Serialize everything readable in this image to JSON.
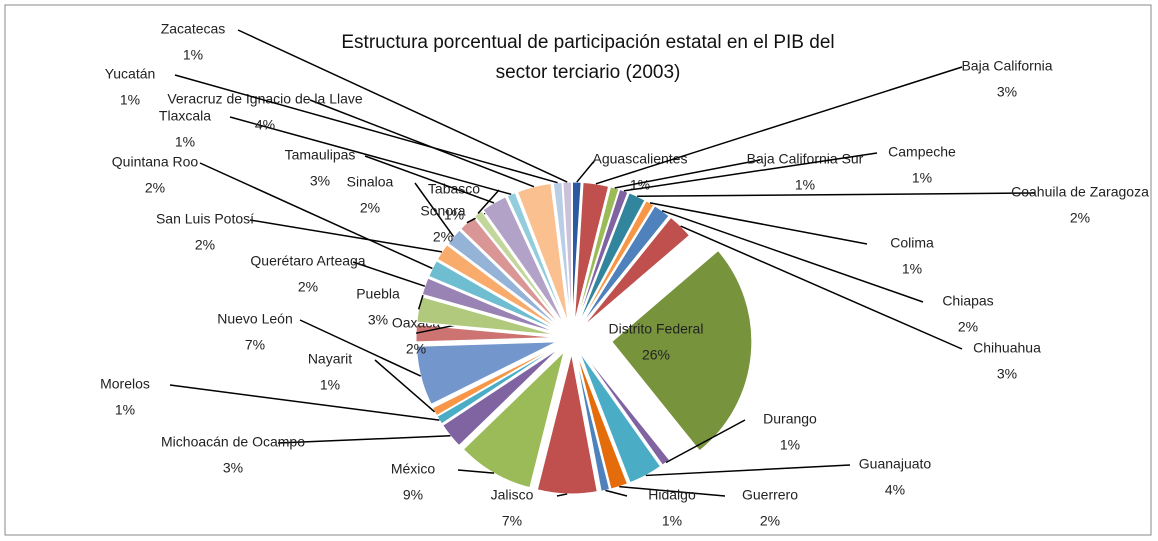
{
  "chart_data": {
    "type": "pie",
    "title": "Estructura porcentual de participación estatal en el PIB del sector terciario (2003)",
    "categories": [
      "Aguascalientes",
      "Baja California",
      "Baja California Sur",
      "Campeche",
      "Coahuila de Zaragoza",
      "Colima",
      "Chiapas",
      "Chihuahua",
      "Distrito Federal",
      "Durango",
      "Guanajuato",
      "Guerrero",
      "Hidalgo",
      "Jalisco",
      "México",
      "Michoacán de Ocampo",
      "Morelos",
      "Nayarit",
      "Nuevo León",
      "Oaxaca",
      "Puebla",
      "Querétaro Arteaga",
      "Quintana Roo",
      "San Luis Potosí",
      "Sinaloa",
      "Sonora",
      "Tabasco",
      "Tamaulipas",
      "Tlaxcala",
      "Veracruz de Ignacio de la Llave",
      "Yucatán",
      "Zacatecas"
    ],
    "values": [
      1,
      3,
      1,
      1,
      2,
      1,
      2,
      3,
      26,
      1,
      4,
      2,
      1,
      7,
      9,
      3,
      1,
      1,
      7,
      2,
      3,
      2,
      2,
      2,
      2,
      2,
      1,
      3,
      1,
      4,
      1,
      1
    ],
    "value_labels": [
      "1%",
      "3%",
      "1%",
      "1%",
      "2%",
      "1%",
      "2%",
      "3%",
      "26%",
      "1%",
      "4%",
      "2%",
      "1%",
      "7%",
      "9%",
      "3%",
      "1%",
      "1%",
      "7%",
      "2%",
      "3%",
      "2%",
      "2%",
      "2%",
      "2%",
      "2%",
      "1%",
      "3%",
      "1%",
      "4%",
      "1%",
      "1%"
    ],
    "colors": [
      "#2c5aa0",
      "#c0504d",
      "#9bbb59",
      "#8064a2",
      "#31859c",
      "#f79646",
      "#4f81bd",
      "#c0504d",
      "#77933c",
      "#8064a2",
      "#4bacc6",
      "#e46c0a",
      "#4f81bd",
      "#c0504d",
      "#9bbb59",
      "#8064a2",
      "#4bacc6",
      "#f79646",
      "#7396cc",
      "#cd7371",
      "#b0c97c",
      "#9983b5",
      "#6fbdd1",
      "#f9ab6b",
      "#95b3d7",
      "#d99694",
      "#c3d69b",
      "#b3a2c7",
      "#93cddd",
      "#fac090",
      "#b9cde5",
      "#ccc1da"
    ]
  }
}
